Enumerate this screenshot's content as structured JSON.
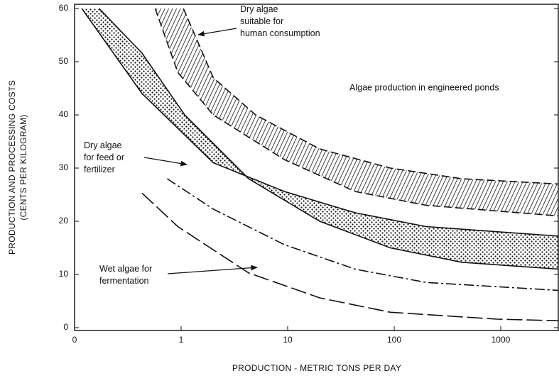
{
  "chart_data": {
    "type": "band",
    "xlabel": "PRODUCTION - METRIC TONS PER DAY",
    "ylabel": [
      "PRODUCTION AND PROCESSING COSTS",
      "(CENTS PER KILOGRAM)"
    ],
    "xscale": "log",
    "xlim": [
      0.1,
      3500
    ],
    "ylim": [
      0,
      60
    ],
    "xticks": [
      {
        "value": 0.1,
        "label": "0"
      },
      1,
      10,
      100,
      1000
    ],
    "yticks": [
      0,
      10,
      20,
      30,
      40,
      50,
      60
    ],
    "annotations": [
      {
        "text": [
          "Dry algae",
          "suitable for",
          "human consumption"
        ]
      },
      {
        "text": [
          "Algae production in engineered ponds"
        ]
      },
      {
        "text": [
          "Dry algae",
          "for feed or",
          "fertilizer"
        ]
      },
      {
        "text": [
          "Wet algae for",
          "fermentation"
        ]
      }
    ],
    "bands": [
      {
        "pattern": "hatch",
        "upper": {
          "dash": "dashed",
          "x": [
            1.05,
            2,
            5,
            20,
            92,
            430,
            3500
          ],
          "values": [
            60,
            47,
            40,
            33.6,
            30,
            28,
            27
          ]
        },
        "lower": {
          "dash": "dashed",
          "x": [
            0.57,
            0.93,
            2,
            9.3,
            43,
            200,
            3500
          ],
          "values": [
            60,
            48,
            40,
            31.6,
            25.6,
            23,
            21
          ]
        }
      },
      {
        "pattern": "dots",
        "upper": {
          "dash": "solid",
          "x": [
            0.117,
            0.43,
            2,
            9.3,
            43,
            200,
            3500
          ],
          "values": [
            60,
            44,
            31,
            25.6,
            21.6,
            19,
            17.2
          ]
        },
        "lower": {
          "dash": "solid",
          "x": [
            0.17,
            0.43,
            1.08,
            4.3,
            20,
            92,
            430,
            3500
          ],
          "values": [
            60,
            51.6,
            40,
            28,
            20,
            15,
            12.3,
            11
          ]
        }
      }
    ],
    "lines": [
      {
        "dash": "dash-dot",
        "x": [
          0.74,
          2,
          9.3,
          43,
          200,
          3500
        ],
        "values": [
          28,
          22.3,
          15.6,
          11,
          8.5,
          7
        ]
      },
      {
        "dash": "long-dash",
        "x": [
          0.43,
          0.93,
          4.3,
          20,
          92,
          920,
          3500
        ],
        "values": [
          25.3,
          19,
          10.3,
          5.6,
          2.9,
          1.6,
          1.3
        ]
      }
    ]
  }
}
